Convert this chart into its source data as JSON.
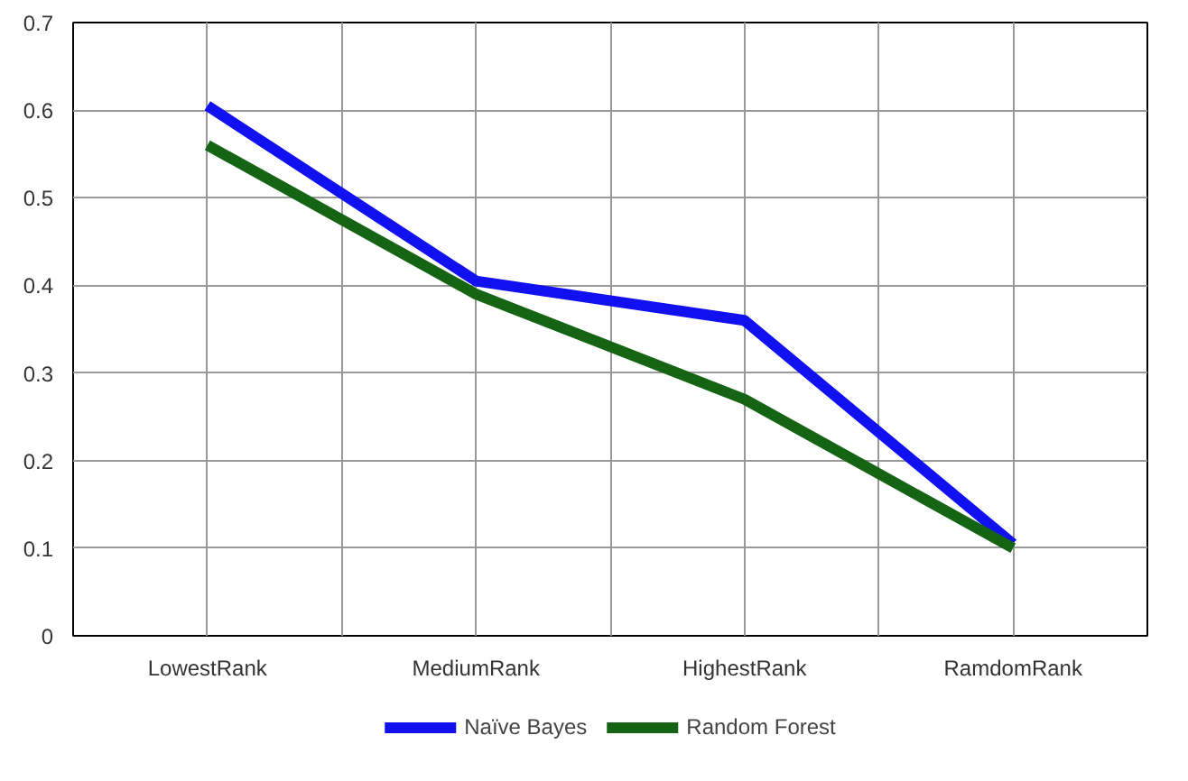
{
  "chart_data": {
    "type": "line",
    "categories": [
      "LowestRank",
      "MediumRank",
      "HighestRank",
      "RamdomRank"
    ],
    "series": [
      {
        "name": "Naïve Bayes",
        "color": "#1010f0",
        "values": [
          0.605,
          0.405,
          0.36,
          0.105
        ]
      },
      {
        "name": "Random Forest",
        "color": "#146414",
        "values": [
          0.56,
          0.39,
          0.27,
          0.1
        ]
      }
    ],
    "ylim": [
      0,
      0.7
    ],
    "yticks": [
      {
        "value": 0,
        "label": "0"
      },
      0.1,
      0.2,
      0.3,
      0.4,
      0.5,
      0.6,
      0.7
    ],
    "grid": true,
    "legend": "bottom",
    "marker": "none",
    "line_style": "solid"
  }
}
